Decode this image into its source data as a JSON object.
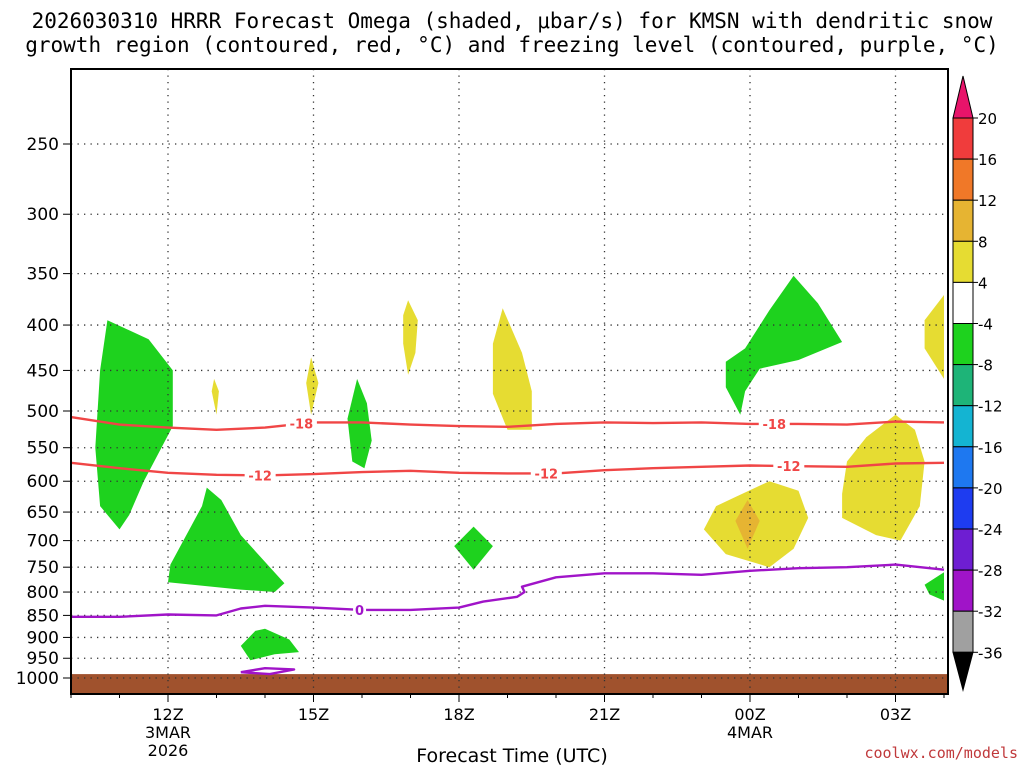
{
  "title": {
    "line1": "2026030310 HRRR Forecast Omega (shaded, μbar/s) for KMSN with dendritic snow",
    "line2": "growth region (contoured, red, °C) and freezing level (contoured, purple, °C)"
  },
  "credit": "coolwx.com/models",
  "chart_data": {
    "type": "contour",
    "title": "2026030310 HRRR Forecast Omega (shaded, μbar/s) for KMSN with dendritic snow growth region (contoured, red, °C) and freezing level (contoured, purple, °C)",
    "xlabel": "Forecast Time (UTC)",
    "ylabel": "",
    "x_unit": "hours from 2026-03-03 10Z",
    "xlim": [
      0,
      18
    ],
    "y_scale": "log-pressure (hPa)",
    "ylim": [
      1000,
      200
    ],
    "grid": true,
    "x_ticks": [
      {
        "x": 2,
        "label": "12Z",
        "sub1": "3MAR",
        "sub2": "2026"
      },
      {
        "x": 5,
        "label": "15Z",
        "sub1": "",
        "sub2": ""
      },
      {
        "x": 8,
        "label": "18Z",
        "sub1": "",
        "sub2": ""
      },
      {
        "x": 11,
        "label": "21Z",
        "sub1": "",
        "sub2": ""
      },
      {
        "x": 14,
        "label": "00Z",
        "sub1": "4MAR",
        "sub2": ""
      },
      {
        "x": 17,
        "label": "03Z",
        "sub1": "",
        "sub2": ""
      }
    ],
    "y_ticks": [
      {
        "p": 250,
        "label": "250"
      },
      {
        "p": 300,
        "label": "300"
      },
      {
        "p": 350,
        "label": "350"
      },
      {
        "p": 400,
        "label": "400"
      },
      {
        "p": 450,
        "label": "450"
      },
      {
        "p": 500,
        "label": "500"
      },
      {
        "p": 550,
        "label": "550"
      },
      {
        "p": 600,
        "label": "600"
      },
      {
        "p": 650,
        "label": "650"
      },
      {
        "p": 700,
        "label": "700"
      },
      {
        "p": 750,
        "label": "750"
      },
      {
        "p": 800,
        "label": "800"
      },
      {
        "p": 850,
        "label": "850"
      },
      {
        "p": 900,
        "label": "900"
      },
      {
        "p": 950,
        "label": "950"
      },
      {
        "p": 1000,
        "label": "1000"
      }
    ],
    "colorbar": {
      "levels": [
        "20",
        "16",
        "12",
        "8",
        "4",
        "-4",
        "-8",
        "-12",
        "-16",
        "-20",
        "-24",
        "-28",
        "-32",
        "-36"
      ],
      "colors": [
        "#e8146a",
        "#f03c3c",
        "#f07828",
        "#e6b432",
        "#e6dc32",
        "#ffffff",
        "#1ed21e",
        "#1eb478",
        "#14b4d2",
        "#1e78f0",
        "#1e3cf0",
        "#6e1ed2",
        "#a014c8",
        "#a0a0a0",
        "#000000"
      ]
    },
    "contours": [
      {
        "name": "-18",
        "color": "#f04646",
        "label_at": [
          {
            "x": 4.75,
            "text": "-18"
          },
          {
            "x": 14.5,
            "text": "-18"
          }
        ],
        "points": [
          [
            0,
            508
          ],
          [
            1,
            518
          ],
          [
            2,
            522
          ],
          [
            3,
            525
          ],
          [
            4,
            522
          ],
          [
            5,
            515
          ],
          [
            6,
            515
          ],
          [
            7,
            518
          ],
          [
            8,
            520
          ],
          [
            9,
            521
          ],
          [
            10,
            517
          ],
          [
            11,
            515
          ],
          [
            12,
            516
          ],
          [
            13,
            515
          ],
          [
            14,
            517
          ],
          [
            15,
            517
          ],
          [
            16,
            518
          ],
          [
            17,
            514
          ],
          [
            18,
            515
          ]
        ]
      },
      {
        "name": "-12",
        "color": "#f04646",
        "label_at": [
          {
            "x": 3.9,
            "text": "-12"
          },
          {
            "x": 9.8,
            "text": "-12"
          },
          {
            "x": 14.8,
            "text": "-12"
          }
        ],
        "points": [
          [
            0,
            572
          ],
          [
            1,
            580
          ],
          [
            2,
            587
          ],
          [
            3,
            590
          ],
          [
            4,
            591
          ],
          [
            5,
            589
          ],
          [
            6,
            586
          ],
          [
            7,
            584
          ],
          [
            8,
            587
          ],
          [
            9,
            588
          ],
          [
            10,
            588
          ],
          [
            11,
            583
          ],
          [
            12,
            580
          ],
          [
            13,
            578
          ],
          [
            14,
            576
          ],
          [
            15,
            577
          ],
          [
            16,
            578
          ],
          [
            17,
            573
          ],
          [
            18,
            572
          ]
        ]
      },
      {
        "name": "0",
        "color": "#a014c8",
        "label_at": [
          {
            "x": 5.95,
            "text": "0"
          }
        ],
        "points": [
          [
            0,
            853
          ],
          [
            1,
            853
          ],
          [
            2,
            848
          ],
          [
            3,
            850
          ],
          [
            3.5,
            835
          ],
          [
            4,
            829
          ],
          [
            5,
            833
          ],
          [
            6,
            838
          ],
          [
            7,
            838
          ],
          [
            8,
            833
          ],
          [
            8.5,
            820
          ],
          [
            9.2,
            810
          ],
          [
            9.35,
            800
          ],
          [
            9.3,
            789
          ],
          [
            10,
            770
          ],
          [
            11,
            762
          ],
          [
            12,
            762
          ],
          [
            13,
            765
          ],
          [
            14,
            757
          ],
          [
            15,
            752
          ],
          [
            16,
            750
          ],
          [
            17,
            745
          ],
          [
            18,
            755
          ]
        ]
      },
      {
        "name": "0-loop",
        "color": "#a014c8",
        "label_at": [],
        "points": [
          [
            3.5,
            985
          ],
          [
            4,
            975
          ],
          [
            4.6,
            978
          ],
          [
            4.1,
            990
          ],
          [
            3.5,
            985
          ]
        ]
      }
    ],
    "shaded_regions": [
      {
        "value": "-4 to -8",
        "color": "#1ed21e",
        "points": [
          [
            0.75,
            395
          ],
          [
            1.6,
            415
          ],
          [
            2.1,
            450
          ],
          [
            2.1,
            520
          ],
          [
            1.5,
            600
          ],
          [
            1.2,
            655
          ],
          [
            1,
            680
          ],
          [
            0.6,
            640
          ],
          [
            0.5,
            550
          ],
          [
            0.6,
            450
          ]
        ]
      },
      {
        "value": "-4 to -8",
        "color": "#1ed21e",
        "points": [
          [
            2.8,
            610
          ],
          [
            3.1,
            630
          ],
          [
            3.5,
            690
          ],
          [
            4.4,
            782
          ],
          [
            4.2,
            800
          ],
          [
            3.5,
            795
          ],
          [
            2,
            780
          ],
          [
            2.05,
            745
          ],
          [
            2.7,
            640
          ]
        ]
      },
      {
        "value": "-4 to -8",
        "color": "#1ed21e",
        "points": [
          [
            4,
            880
          ],
          [
            4.5,
            905
          ],
          [
            4.7,
            935
          ],
          [
            4.2,
            940
          ],
          [
            3.7,
            955
          ],
          [
            3.5,
            920
          ],
          [
            3.8,
            885
          ]
        ]
      },
      {
        "value": "-4 to -8",
        "color": "#1ed21e",
        "points": [
          [
            5.9,
            460
          ],
          [
            6.1,
            490
          ],
          [
            6.2,
            540
          ],
          [
            6.05,
            580
          ],
          [
            5.8,
            570
          ],
          [
            5.7,
            510
          ]
        ]
      },
      {
        "value": "-4 to -8",
        "color": "#1ed21e",
        "points": [
          [
            8.3,
            675
          ],
          [
            8.7,
            710
          ],
          [
            8.3,
            755
          ],
          [
            7.9,
            710
          ]
        ]
      },
      {
        "value": "-4 to -8",
        "color": "#1ed21e",
        "points": [
          [
            14.9,
            352
          ],
          [
            15.4,
            378
          ],
          [
            15.9,
            418
          ],
          [
            15.0,
            438
          ],
          [
            14.2,
            448
          ],
          [
            13.9,
            475
          ],
          [
            13.8,
            505
          ],
          [
            13.5,
            470
          ],
          [
            13.5,
            440
          ],
          [
            13.9,
            425
          ],
          [
            14.4,
            385
          ]
        ]
      },
      {
        "value": "-4 to -8",
        "color": "#1ed21e",
        "points": [
          [
            18,
            760
          ],
          [
            17.6,
            785
          ],
          [
            17.7,
            805
          ],
          [
            18,
            818
          ]
        ]
      },
      {
        "value": "4 to 8",
        "color": "#e6dc32",
        "points": [
          [
            2.95,
            460
          ],
          [
            3.05,
            475
          ],
          [
            3.0,
            505
          ],
          [
            2.9,
            475
          ]
        ]
      },
      {
        "value": "4 to 8",
        "color": "#e6dc32",
        "points": [
          [
            4.95,
            435
          ],
          [
            5.1,
            465
          ],
          [
            4.95,
            505
          ],
          [
            4.85,
            465
          ]
        ]
      },
      {
        "value": "4 to 8",
        "color": "#e6dc32",
        "points": [
          [
            6.95,
            375
          ],
          [
            7.15,
            395
          ],
          [
            7.1,
            430
          ],
          [
            6.95,
            455
          ],
          [
            6.85,
            420
          ],
          [
            6.85,
            390
          ]
        ]
      },
      {
        "value": "4 to 8",
        "color": "#e6dc32",
        "points": [
          [
            8.9,
            383
          ],
          [
            9.3,
            430
          ],
          [
            9.5,
            475
          ],
          [
            9.5,
            525
          ],
          [
            9,
            525
          ],
          [
            8.7,
            478
          ],
          [
            8.7,
            420
          ]
        ]
      },
      {
        "value": "4 to 8",
        "color": "#e6dc32",
        "points": [
          [
            13.7,
            625
          ],
          [
            14.4,
            600
          ],
          [
            15,
            615
          ],
          [
            15.2,
            660
          ],
          [
            14.9,
            715
          ],
          [
            14.4,
            750
          ],
          [
            13.5,
            725
          ],
          [
            13.05,
            680
          ],
          [
            13.3,
            640
          ]
        ]
      },
      {
        "value": "4 to 8",
        "color": "#e6dc32",
        "points": [
          [
            17,
            505
          ],
          [
            17.4,
            525
          ],
          [
            17.6,
            570
          ],
          [
            17.5,
            640
          ],
          [
            17.1,
            700
          ],
          [
            16.6,
            690
          ],
          [
            15.9,
            660
          ],
          [
            15.9,
            620
          ],
          [
            16,
            570
          ],
          [
            16.4,
            535
          ]
        ]
      },
      {
        "value": "4 to 8",
        "color": "#e6dc32",
        "points": [
          [
            18,
            370
          ],
          [
            17.6,
            395
          ],
          [
            17.6,
            425
          ],
          [
            18,
            460
          ]
        ]
      },
      {
        "value": "8 to 12",
        "color": "#e6b432",
        "points": [
          [
            13.95,
            630
          ],
          [
            14.2,
            665
          ],
          [
            13.95,
            715
          ],
          [
            13.7,
            665
          ]
        ]
      }
    ],
    "terrain_fill": {
      "color": "#a0522d",
      "from_p": 990,
      "to_p": 1000
    }
  }
}
